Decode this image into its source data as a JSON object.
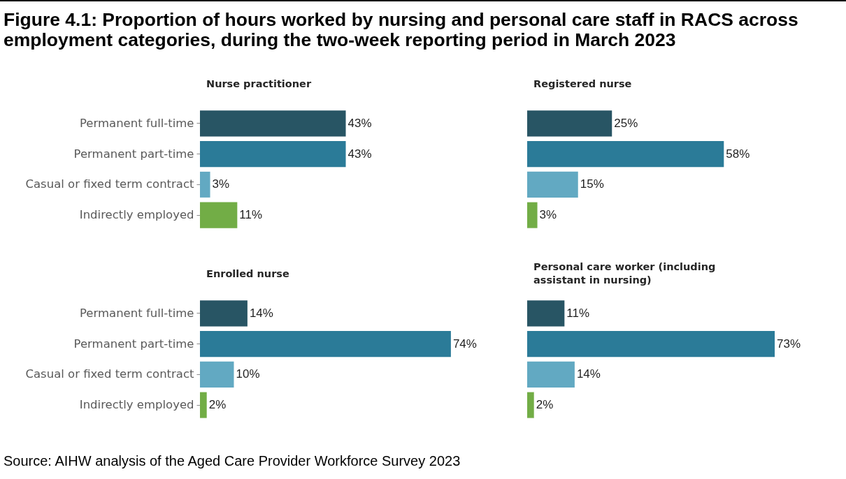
{
  "chart_data": [
    {
      "type": "bar",
      "orientation": "horizontal",
      "title": "Nurse practitioner",
      "categories": [
        "Permanent full-time",
        "Permanent part-time",
        "Casual or fixed term contract",
        "Indirectly employed"
      ],
      "values": [
        43,
        43,
        3,
        11
      ],
      "value_labels": [
        "43%",
        "43%",
        "3%",
        "11%"
      ],
      "colors": [
        "#285564",
        "#2b7b98",
        "#62a9c2",
        "#72ad46"
      ],
      "tick_labels": "y",
      "annotations": [
        "Figure 4.1: Proportion of hours worked by nursing and personal care staff in RACS across employment categories, during the two-week reporting period in March 2023"
      ]
    },
    {
      "type": "bar",
      "orientation": "horizontal",
      "title": "Registered nurse",
      "categories": [
        null,
        null,
        null,
        null
      ],
      "values": [
        25,
        58,
        15,
        3
      ],
      "value_labels": [
        "25%",
        "58%",
        "15%",
        "3%"
      ],
      "colors": [
        "#285564",
        "#2b7b98",
        "#62a9c2",
        "#72ad46"
      ],
      "tick_labels": false
    },
    {
      "type": "bar",
      "orientation": "horizontal",
      "title": "Enrolled nurse",
      "categories": [
        "Permanent full-time",
        "Permanent part-time",
        "Casual or fixed term contract",
        "Indirectly employed"
      ],
      "values": [
        14,
        74,
        10,
        2
      ],
      "value_labels": [
        "14%",
        "74%",
        "10%",
        "2%"
      ],
      "colors": [
        "#285564",
        "#2b7b98",
        "#62a9c2",
        "#72ad46"
      ],
      "tick_labels": "y"
    },
    {
      "type": "bar",
      "orientation": "horizontal",
      "title": "Personal care worker (including assistant in nursing)",
      "categories": [
        null,
        null,
        null,
        null
      ],
      "values": [
        11,
        73,
        14,
        2
      ],
      "value_labels": [
        "11%",
        "73%",
        "14%",
        "2%"
      ],
      "colors": [
        "#285564",
        "#2b7b98",
        "#62a9c2",
        "#72ad46"
      ],
      "tick_labels": false,
      "annotations": [
        "Source: AIHW analysis of the Aged Care Provider Workforce Survey 2023"
      ]
    }
  ]
}
